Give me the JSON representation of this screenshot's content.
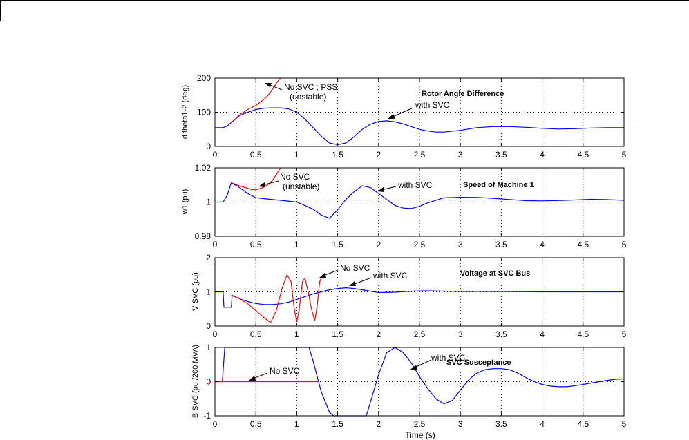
{
  "chart_data": [
    {
      "type": "line",
      "title": "Rotor Angle Difference",
      "ylabel": "d theta1-2 (deg)",
      "xlabel": "",
      "xlim": [
        0,
        5
      ],
      "ylim": [
        0,
        200
      ],
      "grid": true,
      "xticks": [
        "0",
        "0.5",
        "1",
        "1.5",
        "2",
        "2.5",
        "3",
        "3.5",
        "4",
        "4.5",
        "5"
      ],
      "yticks": [
        "0",
        "100",
        "200"
      ],
      "series": [
        {
          "name": "with SVC",
          "color": "#0000ff",
          "x": [
            0,
            0.1,
            0.15,
            0.2,
            0.3,
            0.4,
            0.5,
            0.6,
            0.7,
            0.8,
            0.9,
            1.0,
            1.1,
            1.2,
            1.3,
            1.4,
            1.5,
            1.6,
            1.7,
            1.8,
            1.9,
            2.0,
            2.1,
            2.2,
            2.3,
            2.4,
            2.5,
            2.6,
            2.7,
            2.8,
            3.0,
            3.2,
            3.4,
            3.6,
            3.8,
            4.0,
            4.2,
            4.4,
            4.6,
            4.8,
            5.0
          ],
          "y": [
            55,
            55,
            60,
            70,
            90,
            100,
            108,
            112,
            113,
            113,
            110,
            100,
            80,
            55,
            30,
            10,
            5,
            10,
            28,
            50,
            65,
            73,
            75,
            72,
            66,
            58,
            50,
            45,
            42,
            42,
            47,
            55,
            58,
            58,
            56,
            53,
            51,
            52,
            54,
            55,
            55
          ]
        },
        {
          "name": "No SVC ;  PSS",
          "color": "#ff0000",
          "x": [
            0.2,
            0.3,
            0.4,
            0.5,
            0.6,
            0.65,
            0.7,
            0.75,
            0.8
          ],
          "y": [
            70,
            92,
            108,
            120,
            138,
            150,
            166,
            185,
            200
          ]
        }
      ],
      "annotations": [
        "No SVC ;  PSS",
        "(unstable)",
        "with SVC"
      ]
    },
    {
      "type": "line",
      "title": "Speed of Machine 1",
      "ylabel": "w1 (pu)",
      "xlabel": "",
      "xlim": [
        0,
        5
      ],
      "ylim": [
        0.98,
        1.02
      ],
      "grid": true,
      "xticks": [
        "0",
        "0.5",
        "1",
        "1.5",
        "2",
        "2.5",
        "3",
        "3.5",
        "4",
        "4.5",
        "5"
      ],
      "yticks": [
        "0.98",
        "1",
        "1.02"
      ],
      "series": [
        {
          "name": "with SVC",
          "color": "#0000ff",
          "x": [
            0,
            0.1,
            0.15,
            0.2,
            0.3,
            0.4,
            0.5,
            0.6,
            0.8,
            1.0,
            1.1,
            1.2,
            1.3,
            1.4,
            1.5,
            1.6,
            1.7,
            1.8,
            1.9,
            2.0,
            2.1,
            2.2,
            2.3,
            2.4,
            2.5,
            2.6,
            2.8,
            3.0,
            3.2,
            3.4,
            3.6,
            3.8,
            4.0,
            4.2,
            4.4,
            4.6,
            4.8,
            5.0
          ],
          "y": [
            1.0,
            1.0,
            1.004,
            1.0113,
            1.0085,
            1.005,
            1.0025,
            1.002,
            1.001,
            1.0,
            0.998,
            0.9958,
            0.9924,
            0.9905,
            0.9955,
            1.0015,
            1.006,
            1.0095,
            1.0085,
            1.005,
            1.0015,
            0.998,
            0.9965,
            0.9962,
            0.9975,
            0.9995,
            1.0025,
            1.0028,
            1.0027,
            1.0022,
            1.0015,
            1.0008,
            1.0007,
            1.0009,
            1.0012,
            1.0016,
            1.0014,
            1.001
          ]
        },
        {
          "name": "No SVC",
          "color": "#ff0000",
          "x": [
            0.2,
            0.3,
            0.4,
            0.45,
            0.5,
            0.55,
            0.6,
            0.65,
            0.7,
            0.75,
            0.8
          ],
          "y": [
            1.0113,
            1.0095,
            1.008,
            1.0072,
            1.0072,
            1.0078,
            1.0088,
            1.0103,
            1.0125,
            1.016,
            1.02
          ]
        }
      ],
      "annotations": [
        "No SVC",
        "(unstable)",
        "with SVC"
      ]
    },
    {
      "type": "line",
      "title": "Voltage at  SVC Bus",
      "ylabel": "V SVC (pu)",
      "xlabel": "",
      "xlim": [
        0,
        5
      ],
      "ylim": [
        0,
        2
      ],
      "grid": true,
      "xticks": [
        "0",
        "0.5",
        "1",
        "1.5",
        "2",
        "2.5",
        "3",
        "3.5",
        "4",
        "4.5",
        "5"
      ],
      "yticks": [
        "0",
        "1",
        "2"
      ],
      "series": [
        {
          "name": "with SVC",
          "color": "#0000ff",
          "x": [
            0,
            0.1,
            0.11,
            0.2,
            0.21,
            0.3,
            0.4,
            0.5,
            0.6,
            0.7,
            0.8,
            0.9,
            1.0,
            1.1,
            1.2,
            1.3,
            1.4,
            1.5,
            1.6,
            1.7,
            1.8,
            1.9,
            2.0,
            2.2,
            2.4,
            2.6,
            2.8,
            3.0,
            3.5,
            4.0,
            4.5,
            5.0
          ],
          "y": [
            1.0,
            1.0,
            0.55,
            0.55,
            0.9,
            0.8,
            0.72,
            0.66,
            0.63,
            0.63,
            0.65,
            0.7,
            0.78,
            0.86,
            0.94,
            1.0,
            1.06,
            1.1,
            1.12,
            1.1,
            1.06,
            1.02,
            0.98,
            0.99,
            1.02,
            1.03,
            1.02,
            1.01,
            1.01,
            1.0,
            1.0,
            1.0
          ]
        },
        {
          "name": "No SVC",
          "color": "#ff0000",
          "x": [
            0.2,
            0.3,
            0.4,
            0.5,
            0.6,
            0.68,
            0.75,
            0.82,
            0.88,
            0.93,
            0.97,
            1.0,
            1.03,
            1.07,
            1.1,
            1.14,
            1.18,
            1.22,
            1.25,
            1.28,
            1.32
          ],
          "y": [
            0.9,
            0.8,
            0.65,
            0.45,
            0.25,
            0.1,
            0.45,
            1.1,
            1.5,
            1.3,
            0.5,
            0.12,
            0.5,
            1.3,
            1.4,
            1.0,
            0.5,
            0.15,
            0.6,
            1.3,
            1.5
          ]
        }
      ],
      "annotations": [
        "No SVC",
        "with SVC"
      ]
    },
    {
      "type": "line",
      "title": "SVC Susceptance",
      "ylabel": "B SVC (pu /200 MVA)",
      "xlabel": "Time (s)",
      "xlim": [
        0,
        5
      ],
      "ylim": [
        -1,
        1
      ],
      "grid": true,
      "xticks": [
        "0",
        "0.5",
        "1",
        "1.5",
        "2",
        "2.5",
        "3",
        "3.5",
        "4",
        "4.5",
        "5"
      ],
      "yticks": [
        "-1",
        "0",
        "1"
      ],
      "series": [
        {
          "name": "with SVC",
          "color": "#0000ff",
          "x": [
            0,
            0.09,
            0.12,
            1.15,
            1.2,
            1.3,
            1.4,
            1.45,
            1.85,
            1.9,
            2.0,
            2.1,
            2.2,
            2.3,
            2.4,
            2.5,
            2.6,
            2.7,
            2.8,
            2.9,
            3.0,
            3.1,
            3.2,
            3.3,
            3.4,
            3.5,
            3.6,
            3.7,
            3.8,
            3.9,
            4.0,
            4.1,
            4.2,
            4.3,
            4.4,
            4.5,
            4.6,
            4.7,
            4.8,
            4.9,
            5.0
          ],
          "y": [
            0,
            0,
            1,
            1,
            0.6,
            -0.3,
            -0.9,
            -1,
            -1,
            -0.6,
            0.2,
            0.85,
            1.0,
            0.85,
            0.55,
            0.15,
            -0.2,
            -0.5,
            -0.65,
            -0.55,
            -0.25,
            0.05,
            0.25,
            0.35,
            0.38,
            0.38,
            0.35,
            0.25,
            0.12,
            0.0,
            -0.08,
            -0.13,
            -0.15,
            -0.15,
            -0.12,
            -0.08,
            -0.04,
            0.0,
            0.04,
            0.07,
            0.08
          ]
        },
        {
          "name": "No SVC",
          "color": "#ff0000",
          "x": [
            0,
            1.25
          ],
          "y": [
            0,
            0
          ]
        }
      ],
      "annotations": [
        "No SVC",
        "with SVC"
      ]
    }
  ]
}
